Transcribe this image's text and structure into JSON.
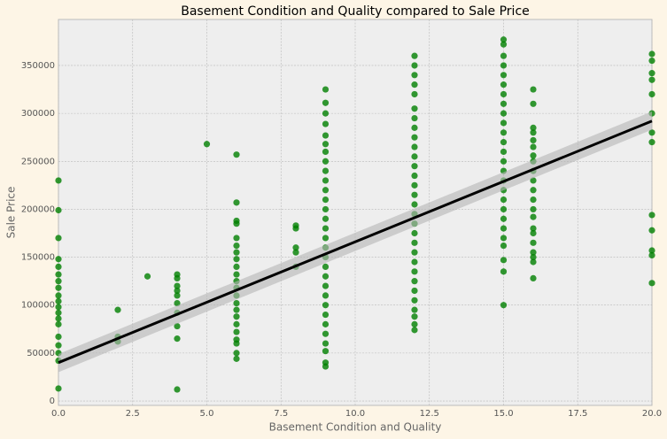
{
  "chart_data": {
    "type": "scatter",
    "title": "Basement Condition and Quality compared to Sale Price",
    "x_label": "Basement Condition and Quality",
    "y_label": "Sale Price",
    "xlim": [
      0,
      20
    ],
    "ylim": [
      -4600,
      398000
    ],
    "xticks": [
      {
        "value": 0,
        "label": "0.0"
      },
      {
        "value": 2.5,
        "label": "2.5"
      },
      {
        "value": 5,
        "label": "5.0"
      },
      {
        "value": 7.5,
        "label": "7.5"
      },
      {
        "value": 10,
        "label": "10.0"
      },
      {
        "value": 12.5,
        "label": "12.5"
      },
      {
        "value": 15,
        "label": "15.0"
      },
      {
        "value": 17.5,
        "label": "17.5"
      },
      {
        "value": 20,
        "label": "20.0"
      }
    ],
    "yticks": [
      0,
      50000,
      100000,
      150000,
      200000,
      250000,
      300000,
      350000
    ],
    "grid": true,
    "series": [
      {
        "color": "#008000",
        "x": [
          0,
          0,
          0,
          0,
          0,
          0,
          0,
          0,
          0,
          0,
          0,
          0,
          0,
          0,
          0,
          0,
          0,
          0,
          0,
          2,
          2,
          2,
          3,
          4,
          4,
          4,
          4,
          4,
          4,
          4,
          4,
          4,
          4,
          5,
          6,
          6,
          6,
          6,
          6,
          6,
          6,
          6,
          6,
          6,
          6,
          6,
          6,
          6,
          6,
          6,
          6,
          6,
          6,
          6,
          6,
          6,
          8,
          8,
          8,
          8,
          8,
          9,
          9,
          9,
          9,
          9,
          9,
          9,
          9,
          9,
          9,
          9,
          9,
          9,
          9,
          9,
          9,
          9,
          9,
          9,
          9,
          9,
          9,
          9,
          9,
          9,
          9,
          9,
          9,
          9,
          9,
          12,
          12,
          12,
          12,
          12,
          12,
          12,
          12,
          12,
          12,
          12,
          12,
          12,
          12,
          12,
          12,
          12,
          12,
          12,
          12,
          12,
          12,
          12,
          12,
          12,
          12,
          12,
          12,
          12,
          12,
          15,
          15,
          15,
          15,
          15,
          15,
          15,
          15,
          15,
          15,
          15,
          15,
          15,
          15,
          15,
          15,
          15,
          15,
          15,
          15,
          15,
          15,
          15,
          15,
          15,
          15,
          16,
          16,
          16,
          16,
          16,
          16,
          16,
          16,
          16,
          16,
          16,
          16,
          16,
          16,
          16,
          16,
          16,
          16,
          16,
          16,
          16,
          20,
          20,
          20,
          20,
          20,
          20,
          20,
          20,
          20,
          20,
          20,
          20,
          20
        ],
        "values": [
          230000,
          199000,
          170000,
          148000,
          140000,
          132000,
          125000,
          118000,
          110000,
          104000,
          98000,
          92000,
          86000,
          80000,
          67000,
          58000,
          50000,
          42000,
          13000,
          95000,
          67000,
          62000,
          130000,
          132000,
          128000,
          120000,
          115000,
          110000,
          102000,
          92000,
          78000,
          65000,
          12000,
          268000,
          257000,
          207000,
          188000,
          185000,
          170000,
          162000,
          155000,
          148000,
          140000,
          132000,
          125000,
          118000,
          110000,
          102000,
          95000,
          88000,
          80000,
          72000,
          64000,
          60000,
          50000,
          44000,
          183000,
          180000,
          160000,
          155000,
          140000,
          325000,
          311000,
          300000,
          289000,
          277000,
          268000,
          260000,
          250000,
          240000,
          230000,
          220000,
          210000,
          200000,
          190000,
          180000,
          170000,
          160000,
          150000,
          140000,
          130000,
          120000,
          110000,
          100000,
          90000,
          80000,
          70000,
          60000,
          52000,
          40000,
          36000,
          360000,
          350000,
          340000,
          330000,
          320000,
          305000,
          295000,
          285000,
          275000,
          265000,
          255000,
          245000,
          235000,
          225000,
          215000,
          205000,
          195000,
          185000,
          175000,
          165000,
          155000,
          145000,
          135000,
          125000,
          115000,
          105000,
          95000,
          88000,
          80000,
          74000,
          377000,
          372000,
          360000,
          350000,
          340000,
          330000,
          320000,
          310000,
          300000,
          290000,
          280000,
          270000,
          260000,
          250000,
          240000,
          230000,
          220000,
          210000,
          200000,
          190000,
          180000,
          170000,
          162000,
          147000,
          135000,
          100000,
          325000,
          310000,
          285000,
          280000,
          272000,
          265000,
          256000,
          250000,
          240000,
          230000,
          220000,
          210000,
          200000,
          192000,
          180000,
          175000,
          165000,
          155000,
          150000,
          145000,
          128000,
          362000,
          355000,
          342000,
          335000,
          320000,
          300000,
          280000,
          270000,
          194000,
          178000,
          157000,
          152000,
          123000
        ]
      }
    ],
    "regression": {
      "color": "#000000",
      "band_color": "#b5b5b5",
      "x": [
        0,
        20
      ],
      "values": [
        40000,
        292000
      ],
      "lower": [
        30000,
        283000
      ],
      "upper": [
        49000,
        302000
      ]
    }
  }
}
